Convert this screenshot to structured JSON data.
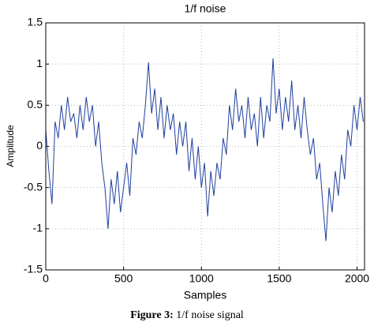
{
  "chart_data": {
    "type": "line",
    "title": "1/f noise",
    "x_label": "Samples",
    "y_label": "Amplitude",
    "x": [
      0,
      20,
      40,
      60,
      80,
      100,
      120,
      140,
      160,
      180,
      200,
      220,
      240,
      260,
      280,
      300,
      320,
      340,
      360,
      380,
      400,
      420,
      440,
      460,
      480,
      500,
      520,
      540,
      560,
      580,
      600,
      620,
      640,
      660,
      680,
      700,
      720,
      740,
      760,
      780,
      800,
      820,
      840,
      860,
      880,
      900,
      920,
      940,
      960,
      980,
      1000,
      1020,
      1040,
      1060,
      1080,
      1100,
      1120,
      1140,
      1160,
      1180,
      1200,
      1220,
      1240,
      1260,
      1280,
      1300,
      1320,
      1340,
      1360,
      1380,
      1400,
      1420,
      1440,
      1460,
      1480,
      1500,
      1520,
      1540,
      1560,
      1580,
      1600,
      1620,
      1640,
      1660,
      1680,
      1700,
      1720,
      1740,
      1760,
      1780,
      1800,
      1820,
      1840,
      1860,
      1880,
      1900,
      1920,
      1940,
      1960,
      1980,
      2000,
      2020,
      2040
    ],
    "series": [
      {
        "name": "1/f noise",
        "color": "#1f3f9f",
        "values": [
          0.2,
          -0.3,
          -0.7,
          0.3,
          0.1,
          0.5,
          0.2,
          0.6,
          0.3,
          0.4,
          0.1,
          0.5,
          0.2,
          0.6,
          0.3,
          0.5,
          0.0,
          0.3,
          -0.2,
          -0.5,
          -1.0,
          -0.4,
          -0.7,
          -0.3,
          -0.8,
          -0.5,
          -0.2,
          -0.6,
          0.1,
          -0.1,
          0.3,
          0.1,
          0.5,
          1.02,
          0.4,
          0.7,
          0.2,
          0.6,
          0.1,
          0.5,
          0.2,
          0.4,
          -0.1,
          0.3,
          0.0,
          0.3,
          -0.3,
          0.1,
          -0.4,
          0.0,
          -0.5,
          -0.2,
          -0.85,
          -0.3,
          -0.6,
          -0.2,
          -0.4,
          0.1,
          -0.1,
          0.5,
          0.2,
          0.7,
          0.3,
          0.5,
          0.1,
          0.6,
          0.2,
          0.4,
          0.0,
          0.6,
          0.1,
          0.5,
          0.3,
          1.07,
          0.4,
          0.7,
          0.2,
          0.6,
          0.3,
          0.8,
          0.2,
          0.5,
          0.1,
          0.6,
          0.2,
          -0.1,
          0.1,
          -0.4,
          -0.2,
          -0.7,
          -1.15,
          -0.5,
          -0.8,
          -0.3,
          -0.6,
          -0.1,
          -0.4,
          0.2,
          0.0,
          0.5,
          0.2,
          0.6,
          0.3
        ]
      }
    ],
    "xlim": [
      0,
      2048
    ],
    "ylim": [
      -1.5,
      1.5
    ],
    "xticks": [
      0,
      500,
      1000,
      1500,
      2000
    ],
    "yticks": [
      -1.5,
      -1,
      -0.5,
      0,
      0.5,
      1,
      1.5
    ],
    "grid": true
  },
  "caption": {
    "label": "Figure 3:",
    "text": "1/f noise signal"
  }
}
